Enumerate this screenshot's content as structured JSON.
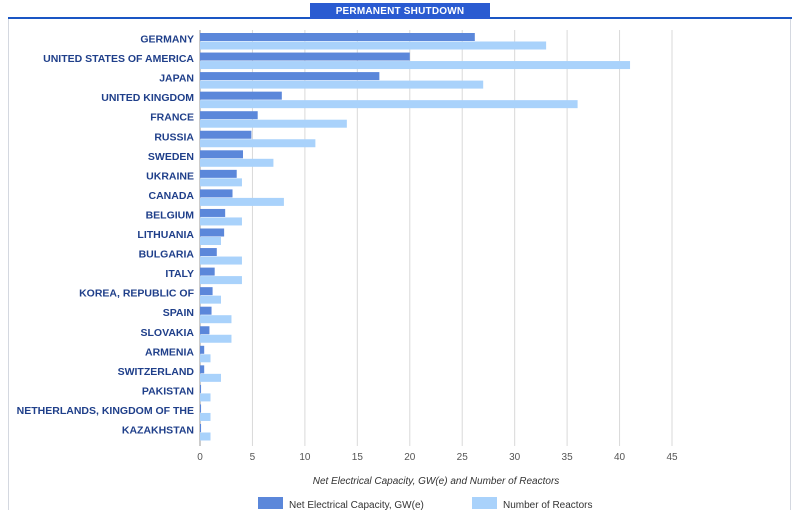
{
  "header": {
    "tab_label": "PERMANENT SHUTDOWN"
  },
  "colors": {
    "series_capacity": "#5b87da",
    "series_reactors": "#a9d2fb",
    "tab": "#2a5bd1",
    "label": "#1f3f8a"
  },
  "chart_data": {
    "type": "bar",
    "orientation": "horizontal",
    "title": "",
    "xlabel": "Net Electrical Capacity, GW(e) and Number of Reactors",
    "ylabel": "",
    "xlim": [
      0,
      45
    ],
    "xticks": [
      0,
      5,
      10,
      15,
      20,
      25,
      30,
      35,
      40,
      45
    ],
    "grid": true,
    "legend_position": "bottom",
    "categories": [
      "GERMANY",
      "UNITED STATES OF AMERICA",
      "JAPAN",
      "UNITED KINGDOM",
      "FRANCE",
      "RUSSIA",
      "SWEDEN",
      "UKRAINE",
      "CANADA",
      "BELGIUM",
      "LITHUANIA",
      "BULGARIA",
      "ITALY",
      "KOREA, REPUBLIC OF",
      "SPAIN",
      "SLOVAKIA",
      "ARMENIA",
      "SWITZERLAND",
      "PAKISTAN",
      "NETHERLANDS, KINGDOM OF THE",
      "KAZAKHSTAN"
    ],
    "series": [
      {
        "name": "Net Electrical Capacity, GW(e)",
        "values": [
          26.2,
          20.0,
          17.1,
          7.8,
          5.5,
          4.9,
          4.1,
          3.5,
          3.1,
          2.4,
          2.3,
          1.6,
          1.4,
          1.2,
          1.1,
          0.9,
          0.4,
          0.4,
          0.1,
          0.1,
          0.1
        ]
      },
      {
        "name": "Number of Reactors",
        "values": [
          33,
          41,
          27,
          36,
          14,
          11,
          7,
          4,
          8,
          4,
          2,
          4,
          4,
          2,
          3,
          3,
          1,
          2,
          1,
          1,
          1
        ]
      }
    ]
  }
}
